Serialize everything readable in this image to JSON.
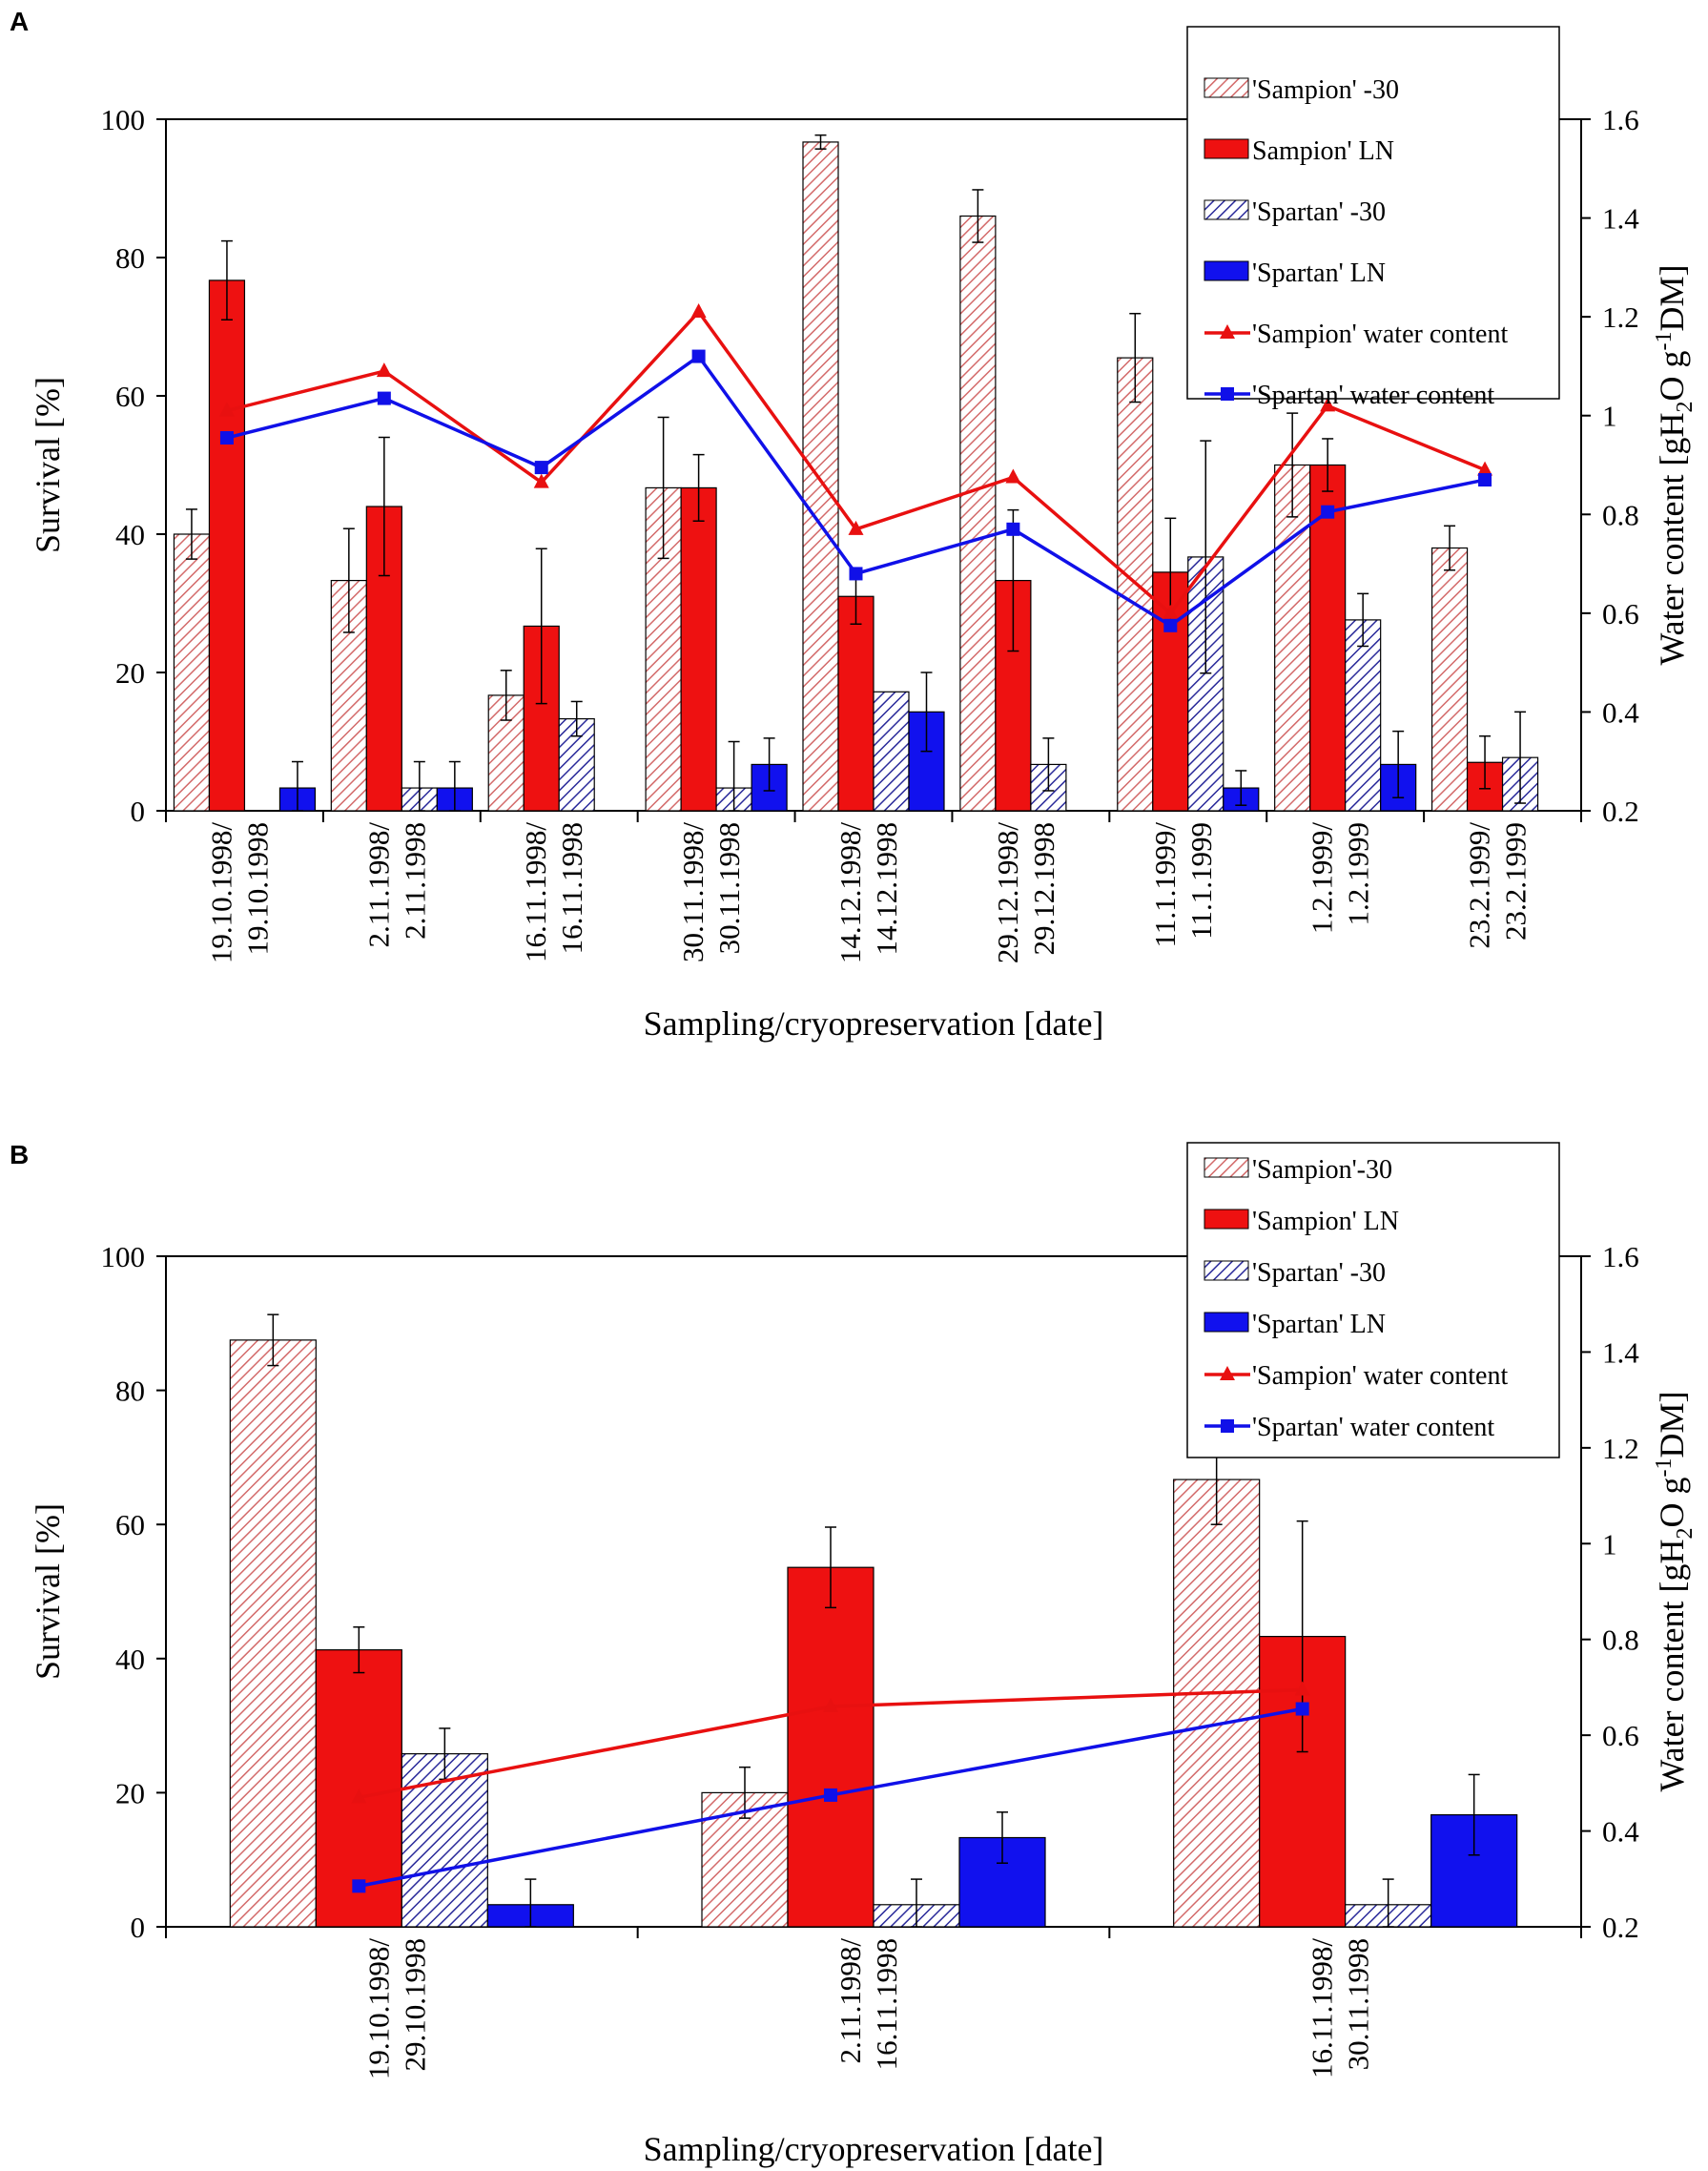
{
  "chart_data": [
    {
      "panel": "A",
      "type": "bar",
      "xlabel": "Sampling/cryopreservation [date]",
      "ylabel": "Survival [%]",
      "y2label_parts": [
        "Water content [gH",
        "2",
        "O g",
        "-1",
        "DM]"
      ],
      "ylim": [
        0,
        100
      ],
      "y2lim": [
        0.2,
        1.6
      ],
      "yticks": [
        "0",
        "20",
        "40",
        "60",
        "80",
        "100"
      ],
      "y2ticks": [
        "0.2",
        "0.4",
        "0.6",
        "0.8",
        "1",
        "1.2",
        "1.4",
        "1.6"
      ],
      "categories": [
        [
          "19.10.1998/",
          "19.10.1998"
        ],
        [
          "2.11.1998/",
          "2.11.1998"
        ],
        [
          "16.11.1998/",
          "16.11.1998"
        ],
        [
          "30.11.1998/",
          "30.11.1998"
        ],
        [
          "14.12.1998/",
          "14.12.1998"
        ],
        [
          "29.12.1998/",
          "29.12.1998"
        ],
        [
          "11.1.1999/",
          "11.1.1999"
        ],
        [
          "1.2.1999/",
          "1.2.1999"
        ],
        [
          "23.2.1999/",
          "23.2.1999"
        ]
      ],
      "series": [
        {
          "name": "'Sampion' -30",
          "kind": "bar",
          "style": "hatch-red",
          "values": [
            40,
            33.3,
            16.7,
            46.7,
            96.7,
            86,
            65.5,
            50,
            38
          ],
          "errors": [
            3.6,
            7.5,
            3.6,
            10.2,
            1,
            3.8,
            6.4,
            7.5,
            3.2
          ]
        },
        {
          "name": "Sampion' LN",
          "kind": "bar",
          "style": "solid-red",
          "values": [
            76.7,
            44,
            26.7,
            46.7,
            31,
            33.3,
            34.5,
            50,
            7
          ],
          "errors": [
            5.7,
            10,
            11.2,
            4.8,
            4,
            10.2,
            7.8,
            3.8,
            3.8
          ]
        },
        {
          "name": "'Spartan' -30",
          "kind": "bar",
          "style": "hatch-blue",
          "values": [
            0,
            3.3,
            13.3,
            3.3,
            17.2,
            6.7,
            36.7,
            27.6,
            7.7
          ],
          "errors": [
            0,
            3.8,
            2.5,
            6.7,
            0,
            3.8,
            16.8,
            3.8,
            6.6
          ]
        },
        {
          "name": "'Spartan' LN",
          "kind": "bar",
          "style": "solid-blue",
          "values": [
            3.3,
            3.3,
            0,
            6.7,
            14.3,
            0,
            3.3,
            6.7,
            0
          ],
          "errors": [
            3.8,
            3.8,
            0,
            3.8,
            5.7,
            0,
            2.5,
            4.8,
            0
          ]
        },
        {
          "name": "'Sampion' water content",
          "kind": "line",
          "color": "#e81010",
          "marker": "triangle",
          "values": [
            1.01,
            1.09,
            0.865,
            1.21,
            0.77,
            0.875,
            0.6,
            1.02,
            0.89
          ]
        },
        {
          "name": "'Spartan' water content",
          "kind": "line",
          "color": "#1010e8",
          "marker": "square",
          "values": [
            0.955,
            1.035,
            0.895,
            1.12,
            0.68,
            0.77,
            0.575,
            0.805,
            0.87
          ]
        }
      ]
    },
    {
      "panel": "B",
      "type": "bar",
      "xlabel": "Sampling/cryopreservation [date]",
      "ylabel": "Survival [%]",
      "y2label_parts": [
        "Water content [gH",
        "2",
        "O g",
        "-1",
        "DM]"
      ],
      "ylim": [
        0,
        100
      ],
      "y2lim": [
        0.2,
        1.6
      ],
      "yticks": [
        "0",
        "20",
        "40",
        "60",
        "80",
        "100"
      ],
      "y2ticks": [
        "0.2",
        "0.4",
        "0.6",
        "0.8",
        "1",
        "1.2",
        "1.4",
        "1.6"
      ],
      "categories": [
        [
          "19.10.1998/",
          "29.10.1998"
        ],
        [
          "2.11.1998/",
          "16.11.1998"
        ],
        [
          "16.11.1998/",
          "30.11.1998"
        ]
      ],
      "series": [
        {
          "name": "'Sampion'-30",
          "kind": "bar",
          "style": "hatch-red",
          "values": [
            87.5,
            20,
            66.7
          ],
          "errors": [
            3.8,
            3.8,
            6.7
          ]
        },
        {
          "name": "'Sampion' LN",
          "kind": "bar",
          "style": "solid-red",
          "values": [
            41.3,
            53.6,
            43.3
          ],
          "errors": [
            3.4,
            6,
            17.2
          ]
        },
        {
          "name": "'Spartan' -30",
          "kind": "bar",
          "style": "hatch-blue",
          "values": [
            25.8,
            3.3,
            3.3
          ],
          "errors": [
            3.8,
            3.8,
            3.8
          ]
        },
        {
          "name": "'Spartan' LN",
          "kind": "bar",
          "style": "solid-blue",
          "values": [
            3.3,
            13.3,
            16.7
          ],
          "errors": [
            3.8,
            3.8,
            6
          ]
        },
        {
          "name": "'Sampion' water content",
          "kind": "line",
          "color": "#e81010",
          "marker": "triangle",
          "values": [
            0.47,
            0.66,
            0.695
          ]
        },
        {
          "name": "'Spartan' water content",
          "kind": "line",
          "color": "#1010e8",
          "marker": "square",
          "values": [
            0.285,
            0.475,
            0.655
          ]
        }
      ]
    }
  ],
  "colors": {
    "red": "#ee1111",
    "red_hatch": "#d36a6a",
    "blue": "#1111ee",
    "blue_hatch": "#2a2a9a",
    "line_red": "#e81010",
    "line_blue": "#1010e8"
  }
}
